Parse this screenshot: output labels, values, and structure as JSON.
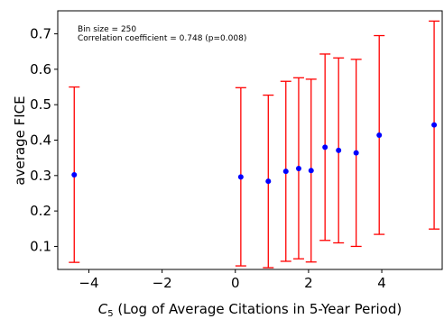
{
  "chart_data": {
    "type": "scatter",
    "title": "",
    "xlabel": "C",
    "xlabel_sub": "5",
    "xlabel_rest": " (Log of Average Citations in 5-Year Period)",
    "ylabel": "average FICE",
    "xlim": [
      -4.85,
      5.65
    ],
    "ylim": [
      0.035,
      0.765
    ],
    "xticks": [
      -4,
      -2,
      0,
      2,
      4
    ],
    "xtick_labels": [
      "−4",
      "−2",
      "0",
      "2",
      "4"
    ],
    "yticks": [
      0.1,
      0.2,
      0.3,
      0.4,
      0.5,
      0.6,
      0.7
    ],
    "ytick_labels": [
      "0.1",
      "0.2",
      "0.3",
      "0.4",
      "0.5",
      "0.6",
      "0.7"
    ],
    "annotations": [
      "Bin size = 250",
      "Correlation coefficient = 0.748 (p=0.008)"
    ],
    "grid": false,
    "marker_color": "#0000ff",
    "errorbar_color": "#ff0000",
    "points": [
      {
        "x": -4.4,
        "y": 0.302,
        "low": 0.055,
        "high": 0.55
      },
      {
        "x": 0.15,
        "y": 0.296,
        "low": 0.045,
        "high": 0.548
      },
      {
        "x": 0.9,
        "y": 0.284,
        "low": 0.04,
        "high": 0.527
      },
      {
        "x": 1.38,
        "y": 0.312,
        "low": 0.058,
        "high": 0.566
      },
      {
        "x": 1.73,
        "y": 0.32,
        "low": 0.065,
        "high": 0.576
      },
      {
        "x": 2.07,
        "y": 0.314,
        "low": 0.056,
        "high": 0.572
      },
      {
        "x": 2.45,
        "y": 0.38,
        "low": 0.117,
        "high": 0.643
      },
      {
        "x": 2.82,
        "y": 0.371,
        "low": 0.11,
        "high": 0.632
      },
      {
        "x": 3.3,
        "y": 0.364,
        "low": 0.1,
        "high": 0.628
      },
      {
        "x": 3.93,
        "y": 0.414,
        "low": 0.134,
        "high": 0.695
      },
      {
        "x": 5.43,
        "y": 0.443,
        "low": 0.149,
        "high": 0.736
      }
    ]
  }
}
